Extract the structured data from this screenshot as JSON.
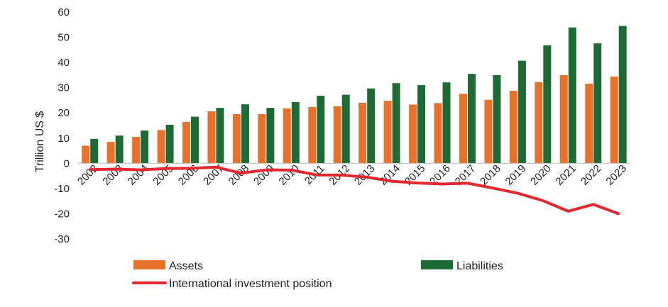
{
  "chart_data": {
    "type": "bar",
    "title": "",
    "xlabel": "",
    "ylabel": "Trillion US $",
    "ylim": [
      -30,
      60
    ],
    "yticks": [
      60,
      50,
      40,
      30,
      20,
      10,
      0,
      -10,
      -20,
      -30
    ],
    "categories": [
      "2002",
      "2003",
      "2004",
      "2005",
      "2006",
      "2007",
      "2008",
      "2009",
      "2010",
      "2011",
      "2012",
      "2013",
      "2014",
      "2015",
      "2016",
      "2017",
      "2018",
      "2019",
      "2020",
      "2021",
      "2022",
      "2023"
    ],
    "series": [
      {
        "name": "Assets",
        "kind": "bar",
        "color": "#e8712b",
        "values": [
          7.0,
          8.5,
          10.5,
          13.2,
          16.4,
          20.6,
          19.5,
          19.5,
          21.8,
          22.3,
          22.6,
          24.0,
          24.8,
          23.3,
          23.9,
          27.6,
          25.2,
          28.8,
          32.2,
          35.0,
          31.6,
          34.4
        ]
      },
      {
        "name": "Liabilities",
        "kind": "bar",
        "color": "#1e6b35",
        "values": [
          9.7,
          11.0,
          13.0,
          15.3,
          18.5,
          22.0,
          23.4,
          22.0,
          24.3,
          26.8,
          27.2,
          29.7,
          31.8,
          31.0,
          32.1,
          35.5,
          35.0,
          40.7,
          46.8,
          53.9,
          47.6,
          54.5
        ]
      },
      {
        "name": "International investment position",
        "kind": "line",
        "color": "#e3282f",
        "values": [
          -2.5,
          -2.3,
          -2.6,
          -2.1,
          -2.0,
          -1.5,
          -3.9,
          -2.6,
          -2.7,
          -4.6,
          -4.7,
          -5.5,
          -7.1,
          -7.8,
          -8.2,
          -7.9,
          -9.8,
          -11.9,
          -14.8,
          -19.0,
          -16.3,
          -20.0
        ]
      }
    ],
    "grid": false,
    "legend_position": "bottom"
  }
}
